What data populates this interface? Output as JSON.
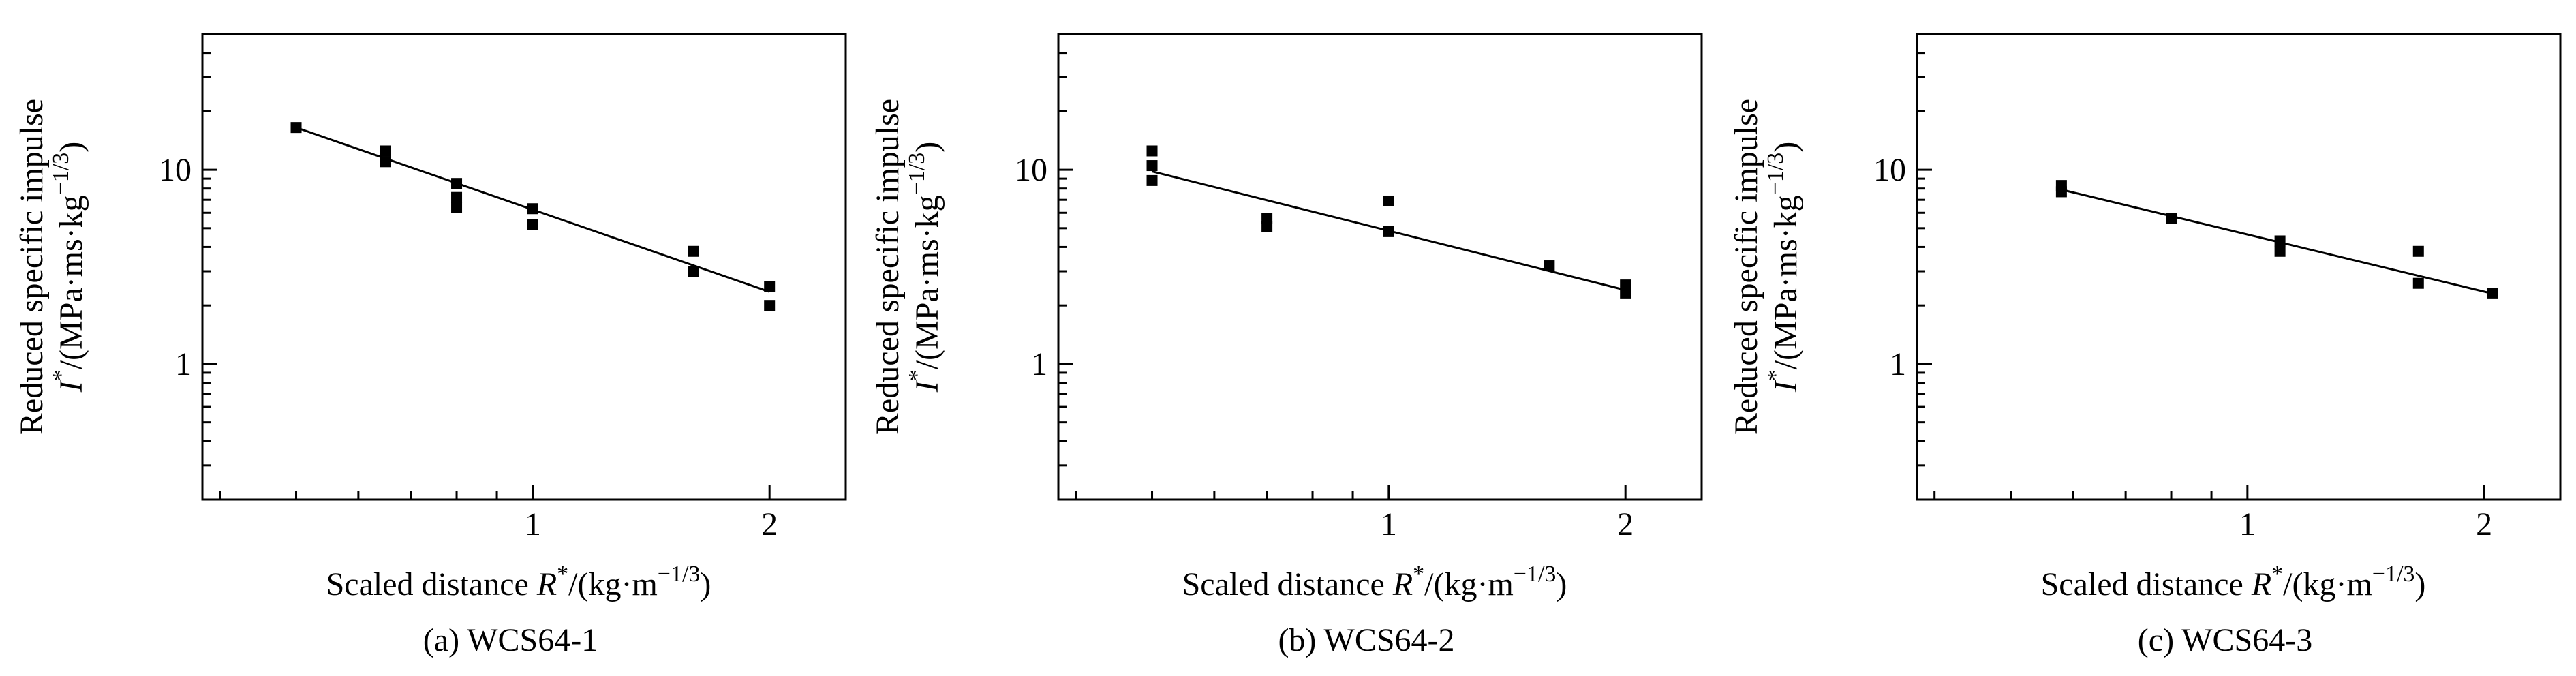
{
  "chart_data": [
    {
      "type": "scatter",
      "caption": "(a) WCS64-1",
      "ylabel_line1": "Reduced specific impulse",
      "ylabel_line2_sym": "I",
      "ylabel_line2_sup": "*",
      "ylabel_line2_unit": "/(MPa·ms·kg",
      "ylabel_line2_exp": "−1/3",
      "ylabel_line2_close": ")",
      "xlabel_text": "Scaled distance ",
      "xlabel_sym": "R",
      "xlabel_sup": "*",
      "xlabel_unit": "/(kg·m",
      "xlabel_exp": "−1/3",
      "xlabel_close": ")",
      "xscale": "log",
      "yscale": "log",
      "xlim": [
        0.38,
        2.5
      ],
      "ylim": [
        0.2,
        50
      ],
      "xticks": [
        {
          "v": 1,
          "label": "1"
        },
        {
          "v": 2,
          "label": "2"
        }
      ],
      "yticks": [
        {
          "v": 1,
          "label": "1"
        },
        {
          "v": 10,
          "label": "10"
        }
      ],
      "grid": false,
      "series": [
        {
          "marker": "square",
          "x": [
            0.5,
            0.65,
            0.65,
            0.8,
            0.8,
            0.8,
            1.0,
            1.0,
            1.6,
            1.6,
            2.0,
            2.0
          ],
          "y": [
            16.5,
            12.5,
            11.0,
            8.5,
            7.2,
            6.4,
            6.3,
            5.2,
            3.8,
            3.0,
            2.5,
            2.0
          ]
        }
      ],
      "fit": {
        "x": [
          0.5,
          2.0
        ],
        "y": [
          16.5,
          2.35
        ]
      }
    },
    {
      "type": "scatter",
      "caption": "(b) WCS64-2",
      "ylabel_line1": "Reduced specific impulse",
      "ylabel_line2_sym": "I",
      "ylabel_line2_sup": "*",
      "ylabel_line2_unit": "/(MPa·ms·kg",
      "ylabel_line2_exp": "−1/3",
      "ylabel_line2_close": ")",
      "xlabel_text": "Scaled distance ",
      "xlabel_sym": "R",
      "xlabel_sup": "*",
      "xlabel_unit": "/(kg·m",
      "xlabel_exp": "−1/3",
      "xlabel_close": ")",
      "xscale": "log",
      "yscale": "log",
      "xlim": [
        0.38,
        2.5
      ],
      "ylim": [
        0.2,
        50
      ],
      "xticks": [
        {
          "v": 1,
          "label": "1"
        },
        {
          "v": 2,
          "label": "2"
        }
      ],
      "yticks": [
        {
          "v": 1,
          "label": "1"
        },
        {
          "v": 10,
          "label": "10"
        }
      ],
      "grid": false,
      "series": [
        {
          "marker": "square",
          "x": [
            0.5,
            0.5,
            0.5,
            0.7,
            0.7,
            1.0,
            1.0,
            1.6,
            2.0,
            2.0
          ],
          "y": [
            12.5,
            10.5,
            8.8,
            5.6,
            5.1,
            6.9,
            4.8,
            3.2,
            2.55,
            2.3
          ]
        }
      ],
      "fit": {
        "x": [
          0.5,
          2.0
        ],
        "y": [
          9.8,
          2.4
        ]
      }
    },
    {
      "type": "scatter",
      "caption": "(c) WCS64-3",
      "ylabel_line1": "Reduced specific impulse",
      "ylabel_line2_sym": "I",
      "ylabel_line2_sup": "*",
      "ylabel_line2_unit": "/(MPa·ms·kg",
      "ylabel_line2_exp": "−1/3",
      "ylabel_line2_close": ")",
      "xlabel_text": "Scaled distance ",
      "xlabel_sym": "R",
      "xlabel_sup": "*",
      "xlabel_unit": "/(kg·m",
      "xlabel_exp": "−1/3",
      "xlabel_close": ")",
      "xscale": "log",
      "yscale": "log",
      "xlim": [
        0.38,
        2.5
      ],
      "ylim": [
        0.2,
        50
      ],
      "xticks": [
        {
          "v": 1,
          "label": "1"
        },
        {
          "v": 2,
          "label": "2"
        }
      ],
      "yticks": [
        {
          "v": 1,
          "label": "1"
        },
        {
          "v": 10,
          "label": "10"
        }
      ],
      "grid": false,
      "series": [
        {
          "marker": "square",
          "x": [
            0.58,
            0.58,
            0.8,
            1.1,
            1.1,
            1.65,
            1.65,
            2.05
          ],
          "y": [
            8.3,
            7.7,
            5.6,
            4.3,
            3.8,
            3.8,
            2.6,
            2.3
          ]
        }
      ],
      "fit": {
        "x": [
          0.58,
          2.05
        ],
        "y": [
          7.9,
          2.3
        ]
      }
    }
  ]
}
